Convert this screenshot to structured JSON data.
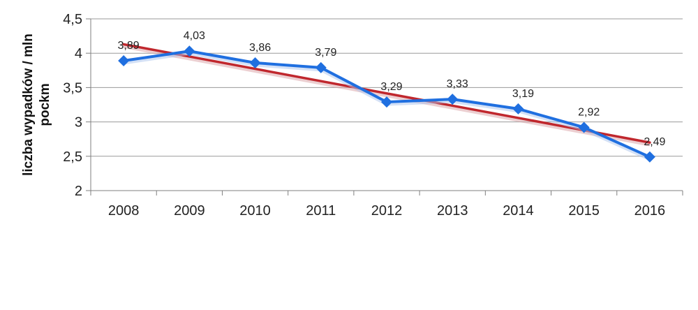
{
  "chart_data": {
    "type": "line",
    "ylabel_lines": [
      "liczba wypadków / mln",
      "pockm"
    ],
    "ylim": [
      2,
      4.5
    ],
    "ytick_labels": [
      "2",
      "2,5",
      "3",
      "3,5",
      "4",
      "4,5"
    ],
    "ytick_values": [
      2,
      2.5,
      3,
      3.5,
      4,
      4.5
    ],
    "grid": true,
    "categories": [
      "2008",
      "2009",
      "2010",
      "2011",
      "2012",
      "2013",
      "2014",
      "2015",
      "2016"
    ],
    "series": [
      {
        "values": [
          3.89,
          4.03,
          3.86,
          3.79,
          3.29,
          3.33,
          3.19,
          2.92,
          2.49
        ],
        "data_labels": [
          "3,89",
          "4,03",
          "3,86",
          "3,79",
          "3,29",
          "3,33",
          "3,19",
          "2,92",
          "2,49"
        ],
        "color": "#1f6fe0",
        "marker": "diamond"
      }
    ],
    "trendline": {
      "type": "linear",
      "start": 4.13,
      "end": 2.7,
      "color": "#c0272d"
    }
  }
}
